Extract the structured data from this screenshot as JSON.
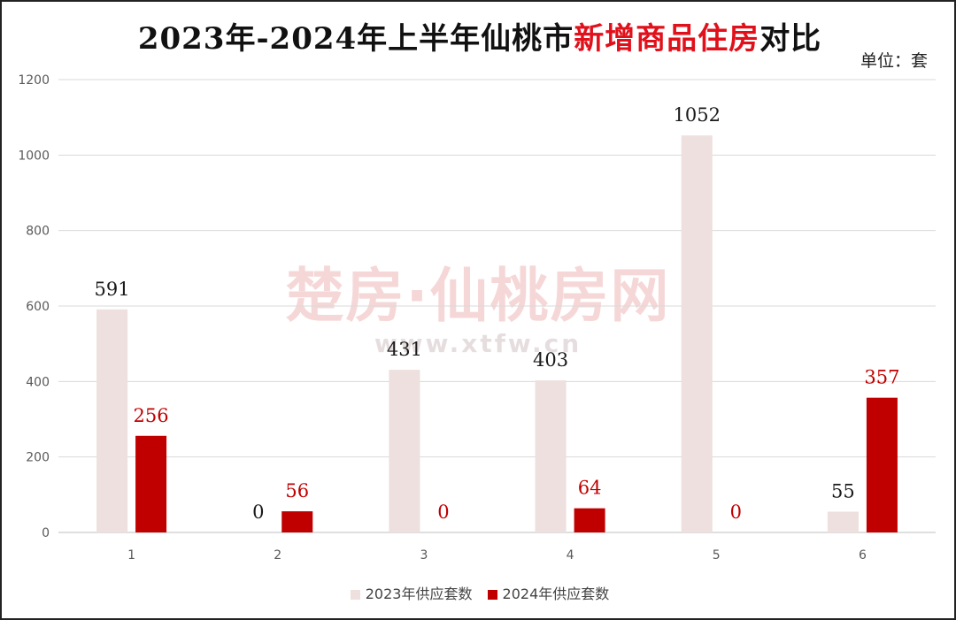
{
  "title": {
    "prefix": "2023年-2024年上半年仙桃市",
    "highlight": "新增商品住房",
    "suffix": "对比"
  },
  "unit": "单位：套",
  "watermark": {
    "line1": "楚房·仙桃房网",
    "line2": "www.xtfw.cn"
  },
  "colors": {
    "series_2023": "#ede0de",
    "series_2024": "#c00000",
    "label_2023": "#1a1a1a",
    "label_2024": "#c00000",
    "title_highlight": "#e0111b"
  },
  "chart_data": {
    "type": "bar",
    "categories": [
      "1",
      "2",
      "3",
      "4",
      "5",
      "6"
    ],
    "series": [
      {
        "name": "2023年供应套数",
        "values": [
          591,
          0,
          431,
          403,
          1052,
          55
        ]
      },
      {
        "name": "2024年供应套数",
        "values": [
          256,
          56,
          0,
          64,
          0,
          357
        ]
      }
    ],
    "ylim": [
      0,
      1200
    ],
    "yticks": [
      0,
      200,
      400,
      600,
      800,
      1000,
      1200
    ],
    "grid": true,
    "legend": "bottom",
    "data_labels": true
  }
}
